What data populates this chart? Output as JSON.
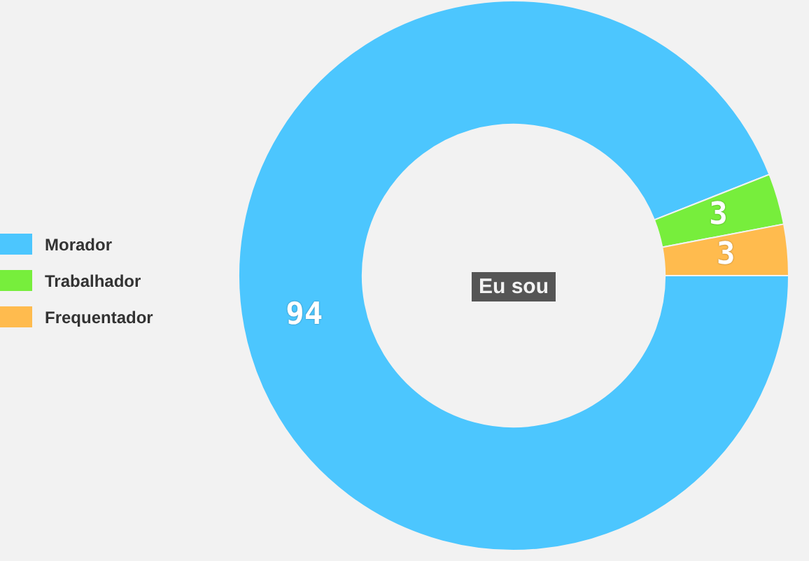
{
  "chart_data": {
    "type": "donut",
    "title": "Eu sou",
    "categories": [
      "Morador",
      "Trabalhador",
      "Frequentador"
    ],
    "values": [
      94,
      3,
      3
    ],
    "colors": [
      "#4cc6fe",
      "#77ee3c",
      "#ffbb4e"
    ],
    "legend": "left",
    "data_labels": true
  }
}
